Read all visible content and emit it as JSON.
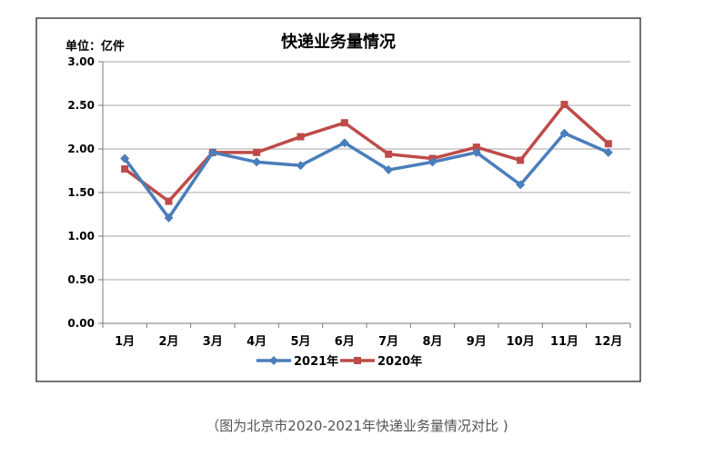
{
  "caption": "（图为北京市2020-2021年快递业务量情况对比 )",
  "chart_data": {
    "type": "line",
    "title": "快递业务量情况",
    "unit_label": "单位：亿件",
    "categories": [
      "1月",
      "2月",
      "3月",
      "4月",
      "5月",
      "6月",
      "7月",
      "8月",
      "9月",
      "10月",
      "11月",
      "12月"
    ],
    "ylim": [
      0,
      3
    ],
    "yticks": [
      "0.00",
      "0.50",
      "1.00",
      "1.50",
      "2.00",
      "2.50",
      "3.00"
    ],
    "grid": true,
    "legend_position": "bottom",
    "series": [
      {
        "name": "2021年",
        "color": "#4a7ebb",
        "marker": "diamond",
        "values": [
          1.89,
          1.21,
          1.96,
          1.85,
          1.81,
          2.07,
          1.76,
          1.85,
          1.96,
          1.59,
          2.18,
          1.96
        ]
      },
      {
        "name": "2020年",
        "color": "#be4b48",
        "marker": "square",
        "values": [
          1.77,
          1.4,
          1.96,
          1.96,
          2.14,
          2.3,
          1.94,
          1.89,
          2.02,
          1.87,
          2.51,
          2.06
        ]
      }
    ]
  }
}
